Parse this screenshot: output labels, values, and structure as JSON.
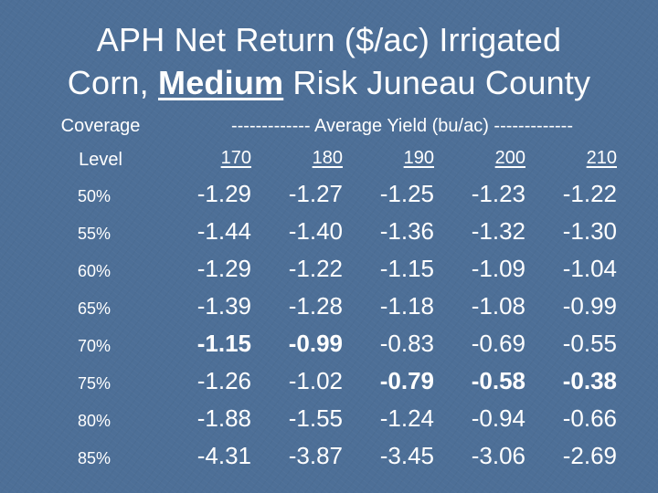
{
  "title": {
    "line1": "APH Net Return ($/ac) Irrigated",
    "line2_pre": "Corn, ",
    "line2_bold": "Medium",
    "line2_post": " Risk Juneau County"
  },
  "header": {
    "coverage": "Coverage",
    "level": "Level",
    "average_yield": "------------- Average Yield (bu/ac) -------------",
    "yields": [
      "170",
      "180",
      "190",
      "200",
      "210"
    ]
  },
  "rows": [
    {
      "level": "50%",
      "values": [
        "-1.29",
        "-1.27",
        "-1.25",
        "-1.23",
        "-1.22"
      ]
    },
    {
      "level": "55%",
      "values": [
        "-1.44",
        "-1.40",
        "-1.36",
        "-1.32",
        "-1.30"
      ]
    },
    {
      "level": "60%",
      "values": [
        "-1.29",
        "-1.22",
        "-1.15",
        "-1.09",
        "-1.04"
      ]
    },
    {
      "level": "65%",
      "values": [
        "-1.39",
        "-1.28",
        "-1.18",
        "-1.08",
        "-0.99"
      ]
    },
    {
      "level": "70%",
      "values": [
        "-1.15",
        "-0.99",
        "-0.83",
        "-0.69",
        "-0.55"
      ]
    },
    {
      "level": "75%",
      "values": [
        "-1.26",
        "-1.02",
        "-0.79",
        "-0.58",
        "-0.38"
      ]
    },
    {
      "level": "80%",
      "values": [
        "-1.88",
        "-1.55",
        "-1.24",
        "-0.94",
        "-0.66"
      ]
    },
    {
      "level": "85%",
      "values": [
        "-4.31",
        "-3.87",
        "-3.45",
        "-3.06",
        "-2.69"
      ]
    }
  ],
  "bold_cells": [
    [
      4,
      0
    ],
    [
      4,
      1
    ],
    [
      5,
      2
    ],
    [
      5,
      3
    ],
    [
      5,
      4
    ]
  ],
  "colors": {
    "background": "#4d6f97",
    "text": "#ffffff"
  }
}
